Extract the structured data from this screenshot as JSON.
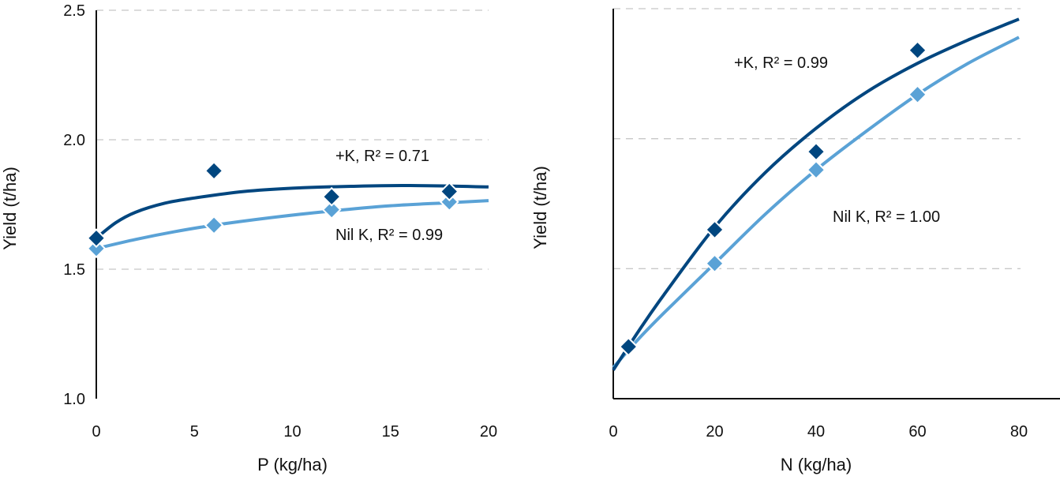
{
  "colors": {
    "plus_k": "#00467f",
    "nil_k": "#5aa2d6",
    "grid": "#c8c8c8",
    "axis": "#111111"
  },
  "chart_data": [
    {
      "type": "scatter",
      "xlabel": "P (kg/ha)",
      "ylabel": "Yield (t/ha)",
      "xlim": [
        0,
        20
      ],
      "ylim": [
        1.0,
        2.5
      ],
      "xticks": [
        "0",
        "5",
        "10",
        "15",
        "20"
      ],
      "yticks": [
        "1.0",
        "1.5",
        "2.0",
        "2.5"
      ],
      "grid": "horizontal dashed",
      "series": [
        {
          "name": "+K",
          "label": "+K, R² = 0.71",
          "x": [
            0,
            6,
            12,
            18
          ],
          "y": [
            1.62,
            1.88,
            1.78,
            1.8
          ],
          "trend": [
            [
              0,
              1.62
            ],
            [
              1,
              1.68
            ],
            [
              2,
              1.72
            ],
            [
              3.5,
              1.755
            ],
            [
              5,
              1.775
            ],
            [
              7.5,
              1.8
            ],
            [
              10,
              1.813
            ],
            [
              13,
              1.82
            ],
            [
              16,
              1.823
            ],
            [
              20,
              1.818
            ]
          ]
        },
        {
          "name": "Nil K",
          "label": "Nil K, R² = 0.99",
          "x": [
            0,
            6,
            12,
            18
          ],
          "y": [
            1.58,
            1.67,
            1.73,
            1.76
          ],
          "trend": [
            [
              0,
              1.58
            ],
            [
              2,
              1.615
            ],
            [
              4,
              1.645
            ],
            [
              6,
              1.67
            ],
            [
              9,
              1.7
            ],
            [
              12,
              1.725
            ],
            [
              15,
              1.745
            ],
            [
              18,
              1.757
            ],
            [
              20,
              1.765
            ]
          ]
        }
      ]
    },
    {
      "type": "scatter",
      "xlabel": "N (kg/ha)",
      "ylabel": "Yield (t/ha)",
      "xlim": [
        0,
        80
      ],
      "ylim": [
        1.0,
        2.5
      ],
      "xticks": [
        "0",
        "20",
        "40",
        "60",
        "80"
      ],
      "yticks": [],
      "grid": "horizontal dashed",
      "series": [
        {
          "name": "+K",
          "label": "+K, R² = 0.99",
          "x": [
            3,
            20,
            40,
            60
          ],
          "y": [
            1.2,
            1.65,
            1.95,
            2.34
          ],
          "trend": [
            [
              0,
              1.11
            ],
            [
              5,
              1.26
            ],
            [
              10,
              1.4
            ],
            [
              20,
              1.66
            ],
            [
              30,
              1.87
            ],
            [
              40,
              2.04
            ],
            [
              50,
              2.18
            ],
            [
              60,
              2.29
            ],
            [
              70,
              2.38
            ],
            [
              80,
              2.46
            ]
          ]
        },
        {
          "name": "Nil K",
          "label": "Nil K, R² = 1.00",
          "x": [
            3,
            20,
            40,
            60
          ],
          "y": [
            1.2,
            1.52,
            1.88,
            2.17
          ],
          "trend": [
            [
              0,
              1.12
            ],
            [
              5,
              1.23
            ],
            [
              10,
              1.33
            ],
            [
              20,
              1.52
            ],
            [
              30,
              1.71
            ],
            [
              40,
              1.88
            ],
            [
              50,
              2.03
            ],
            [
              60,
              2.17
            ],
            [
              70,
              2.29
            ],
            [
              80,
              2.39
            ]
          ]
        }
      ]
    }
  ]
}
